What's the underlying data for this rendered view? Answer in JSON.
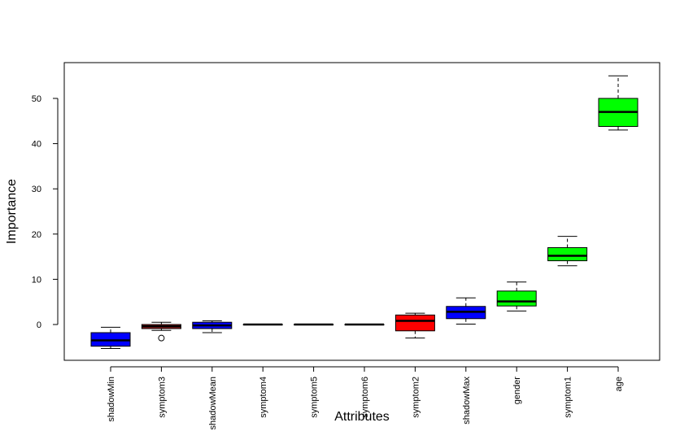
{
  "chart_data": {
    "type": "boxplot",
    "title": "",
    "xlabel": "Attributes",
    "ylabel": "Importance",
    "ylim": [
      -8,
      58
    ],
    "yticks": [
      0,
      10,
      20,
      30,
      40,
      50
    ],
    "grid": false,
    "legend": "none",
    "boxes": [
      {
        "name": "shadowMin",
        "color": "#0000ff",
        "min": -5.3,
        "q1": -4.8,
        "median": -3.5,
        "q3": -1.8,
        "max": -0.6,
        "outliers": []
      },
      {
        "name": "symptom3",
        "color": "#b22222",
        "min": -1.3,
        "q1": -0.9,
        "median": -0.4,
        "q3": 0.0,
        "max": 0.5,
        "outliers": [
          -3.0
        ]
      },
      {
        "name": "shadowMean",
        "color": "#0000ff",
        "min": -1.8,
        "q1": -0.9,
        "median": -0.2,
        "q3": 0.5,
        "max": 0.8,
        "outliers": []
      },
      {
        "name": "symptom4",
        "color": "#0000ff",
        "min": 0.0,
        "q1": 0.0,
        "median": 0.0,
        "q3": 0.0,
        "max": 0.0,
        "outliers": []
      },
      {
        "name": "symptom5",
        "color": "#0000ff",
        "min": 0.0,
        "q1": 0.0,
        "median": 0.0,
        "q3": 0.0,
        "max": 0.0,
        "outliers": []
      },
      {
        "name": "symptom6",
        "color": "#0000ff",
        "min": 0.0,
        "q1": 0.0,
        "median": 0.0,
        "q3": 0.0,
        "max": 0.0,
        "outliers": []
      },
      {
        "name": "symptom2",
        "color": "#ff0000",
        "min": -3.0,
        "q1": -1.4,
        "median": 0.8,
        "q3": 2.1,
        "max": 2.5,
        "outliers": []
      },
      {
        "name": "shadowMax",
        "color": "#0000ff",
        "min": 0.1,
        "q1": 1.3,
        "median": 2.8,
        "q3": 4.0,
        "max": 5.9,
        "outliers": []
      },
      {
        "name": "gender",
        "color": "#00ff00",
        "min": 3.0,
        "q1": 4.1,
        "median": 5.1,
        "q3": 7.4,
        "max": 9.4,
        "outliers": []
      },
      {
        "name": "symptom1",
        "color": "#00ff00",
        "min": 13.0,
        "q1": 14.1,
        "median": 15.2,
        "q3": 17.0,
        "max": 19.5,
        "outliers": []
      },
      {
        "name": "age",
        "color": "#00ff00",
        "min": 43.0,
        "q1": 43.8,
        "median": 47.0,
        "q3": 50.0,
        "max": 55.0,
        "outliers": []
      }
    ]
  }
}
